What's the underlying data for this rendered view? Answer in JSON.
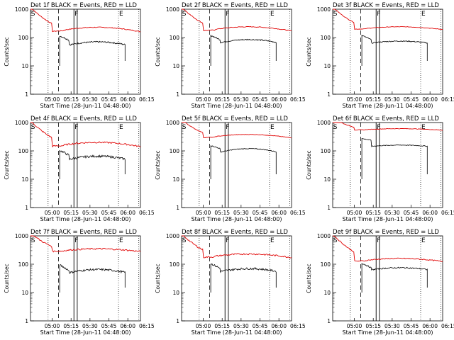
{
  "chart_data": [
    {
      "type": "line",
      "title": "Det 1f BLACK = Events, RED = LLD",
      "xlabel": "Start Time (28-Jun-11 04:48:00)",
      "ylabel": "Counts/sec",
      "x_ticks": [
        "05:00",
        "05:15",
        "05:30",
        "05:45",
        "06:00",
        "06:15"
      ],
      "y_ticks": [
        "1",
        "10",
        "100",
        "1000"
      ],
      "y_scale": "log",
      "ylim": [
        1,
        1000
      ],
      "markers": [
        "S",
        "F",
        "E"
      ],
      "legend": "in title",
      "series": [
        {
          "name": "LLD",
          "color": "#e00000",
          "start": 1000,
          "base": 170,
          "amp": 60,
          "noise": 0.03
        },
        {
          "name": "Events",
          "color": "#000000",
          "start": 100,
          "base": 50,
          "amp": 20,
          "noise": 0.06
        }
      ]
    },
    {
      "type": "line",
      "title": "Det 2f BLACK = Events, RED = LLD",
      "xlabel": "Start Time (28-Jun-11 04:48:00)",
      "ylabel": "Counts/sec",
      "x_ticks": [
        "05:00",
        "05:15",
        "05:30",
        "05:45",
        "06:00",
        "06:15"
      ],
      "y_ticks": [
        "1",
        "10",
        "100",
        "1000"
      ],
      "y_scale": "log",
      "ylim": [
        1,
        1000
      ],
      "markers": [
        "S",
        "F",
        "E"
      ],
      "legend": "in title",
      "series": [
        {
          "name": "LLD",
          "color": "#e00000",
          "start": 1000,
          "base": 180,
          "amp": 60,
          "noise": 0.03
        },
        {
          "name": "Events",
          "color": "#000000",
          "start": 100,
          "base": 60,
          "amp": 25,
          "noise": 0.05
        }
      ]
    },
    {
      "type": "line",
      "title": "Det 3f BLACK = Events, RED = LLD",
      "xlabel": "Start Time (28-Jun-11 04:48:00)",
      "ylabel": "Counts/sec",
      "x_ticks": [
        "05:00",
        "05:15",
        "05:30",
        "05:45",
        "06:00",
        "06:15"
      ],
      "y_ticks": [
        "1",
        "10",
        "100",
        "1000"
      ],
      "y_scale": "log",
      "ylim": [
        1,
        1000
      ],
      "markers": [
        "S",
        "F",
        "E"
      ],
      "legend": "in title",
      "series": [
        {
          "name": "LLD",
          "color": "#e00000",
          "start": 1000,
          "base": 200,
          "amp": 40,
          "noise": 0.02
        },
        {
          "name": "Events",
          "color": "#000000",
          "start": 100,
          "base": 60,
          "amp": 15,
          "noise": 0.04
        }
      ]
    },
    {
      "type": "line",
      "title": "Det 4f BLACK = Events, RED = LLD",
      "xlabel": "Start Time (28-Jun-11 04:48:00)",
      "ylabel": "Counts/sec",
      "x_ticks": [
        "05:00",
        "05:15",
        "05:30",
        "05:45",
        "06:00",
        "06:15"
      ],
      "y_ticks": [
        "1",
        "10",
        "100",
        "1000"
      ],
      "y_scale": "log",
      "ylim": [
        1,
        1000
      ],
      "markers": [
        "S",
        "F",
        "E"
      ],
      "legend": "in title",
      "series": [
        {
          "name": "LLD",
          "color": "#e00000",
          "start": 1000,
          "base": 150,
          "amp": 50,
          "noise": 0.06
        },
        {
          "name": "Events",
          "color": "#000000",
          "start": 90,
          "base": 45,
          "amp": 20,
          "noise": 0.09
        }
      ]
    },
    {
      "type": "line",
      "title": "Det 5f BLACK = Events, RED = LLD",
      "xlabel": "Start Time (28-Jun-11 04:48:00)",
      "ylabel": "Counts/sec",
      "x_ticks": [
        "05:00",
        "05:15",
        "05:30",
        "05:45",
        "06:00",
        "06:15"
      ],
      "y_ticks": [
        "1",
        "10",
        "100",
        "1000"
      ],
      "y_scale": "log",
      "ylim": [
        1,
        1000
      ],
      "markers": [
        "S",
        "F",
        "E"
      ],
      "legend": "in title",
      "series": [
        {
          "name": "LLD",
          "color": "#e00000",
          "start": 1000,
          "base": 300,
          "amp": 80,
          "noise": 0.02
        },
        {
          "name": "Events",
          "color": "#000000",
          "start": 130,
          "base": 80,
          "amp": 40,
          "noise": 0.03
        }
      ]
    },
    {
      "type": "line",
      "title": "Det 6f BLACK = Events, RED = LLD",
      "xlabel": "Start Time (28-Jun-11 04:48:00)",
      "ylabel": "Counts/sec",
      "x_ticks": [
        "05:00",
        "05:15",
        "05:30",
        "05:45",
        "06:00",
        "06:15"
      ],
      "y_ticks": [
        "1",
        "10",
        "100",
        "1000"
      ],
      "y_scale": "log",
      "ylim": [
        1,
        1000
      ],
      "markers": [
        "S",
        "F",
        "E"
      ],
      "legend": "in title",
      "series": [
        {
          "name": "LLD",
          "color": "#e00000",
          "start": 1000,
          "base": 550,
          "amp": 60,
          "noise": 0.02
        },
        {
          "name": "Events",
          "color": "#000000",
          "start": 230,
          "base": 140,
          "amp": 20,
          "noise": 0.03
        }
      ]
    },
    {
      "type": "line",
      "title": "Det 7f BLACK = Events, RED = LLD",
      "xlabel": "Start Time (28-Jun-11 04:48:00)",
      "ylabel": "Counts/sec",
      "x_ticks": [
        "05:00",
        "05:15",
        "05:30",
        "05:45",
        "06:00",
        "06:15"
      ],
      "y_ticks": [
        "1",
        "10",
        "100",
        "1000"
      ],
      "y_scale": "log",
      "ylim": [
        1,
        1000
      ],
      "markers": [
        "S",
        "F",
        "E"
      ],
      "legend": "in title",
      "series": [
        {
          "name": "LLD",
          "color": "#e00000",
          "start": 1000,
          "base": 290,
          "amp": 60,
          "noise": 0.06
        },
        {
          "name": "Events",
          "color": "#000000",
          "start": 80,
          "base": 45,
          "amp": 20,
          "noise": 0.08
        }
      ]
    },
    {
      "type": "line",
      "title": "Det 8f BLACK = Events, RED = LLD",
      "xlabel": "Start Time (28-Jun-11 04:48:00)",
      "ylabel": "Counts/sec",
      "x_ticks": [
        "05:00",
        "05:15",
        "05:30",
        "05:45",
        "06:00",
        "06:15"
      ],
      "y_ticks": [
        "1",
        "10",
        "100",
        "1000"
      ],
      "y_scale": "log",
      "ylim": [
        1,
        1000
      ],
      "markers": [
        "S",
        "F",
        "E"
      ],
      "legend": "in title",
      "series": [
        {
          "name": "LLD",
          "color": "#e00000",
          "start": 1000,
          "base": 180,
          "amp": 50,
          "noise": 0.06
        },
        {
          "name": "Events",
          "color": "#000000",
          "start": 90,
          "base": 50,
          "amp": 20,
          "noise": 0.08
        }
      ]
    },
    {
      "type": "line",
      "title": "Det 9f BLACK = Events, RED = LLD",
      "xlabel": "Start Time (28-Jun-11 04:48:00)",
      "ylabel": "Counts/sec",
      "x_ticks": [
        "05:00",
        "05:15",
        "05:30",
        "05:45",
        "06:00",
        "06:15"
      ],
      "y_ticks": [
        "1",
        "10",
        "100",
        "1000"
      ],
      "y_scale": "log",
      "ylim": [
        1,
        1000
      ],
      "markers": [
        "S",
        "F",
        "E"
      ],
      "legend": "in title",
      "series": [
        {
          "name": "LLD",
          "color": "#e00000",
          "start": 1000,
          "base": 130,
          "amp": 30,
          "noise": 0.04
        },
        {
          "name": "Events",
          "color": "#000000",
          "start": 90,
          "base": 60,
          "amp": 15,
          "noise": 0.05
        }
      ]
    }
  ]
}
